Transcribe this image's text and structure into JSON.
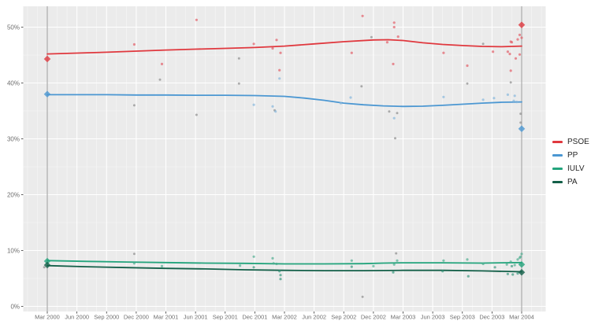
{
  "chart_data": {
    "type": "scatter",
    "title": "",
    "x_axis": {
      "tick_labels": [
        "Mar 2000",
        "Jun 2000",
        "Sep 2000",
        "Dec 2000",
        "Mar 2001",
        "Jun 2001",
        "Sep 2001",
        "Dec 2001",
        "Mar 2002",
        "Jun 2002",
        "Sep 2002",
        "Dec 2002",
        "Mar 2003",
        "Jun 2003",
        "Sep 2003",
        "Dec 2003",
        "Mar 2004"
      ],
      "major_tick_every_months": 3,
      "minor_tick_every_months": 1,
      "range_months": [
        -2.4,
        50.4
      ]
    },
    "y_axis": {
      "tick_labels": [
        "0%",
        "10%",
        "20%",
        "30%",
        "40%",
        "50%"
      ],
      "tick_values": [
        0,
        10,
        20,
        30,
        40,
        50
      ],
      "minor_tick_values": [
        5,
        15,
        25,
        35,
        45
      ],
      "range_percent": [
        -0.9,
        53.7
      ]
    },
    "grid": "on",
    "legend_position": "right",
    "election_dates": [
      {
        "label": "Mar 2000",
        "month": 0
      },
      {
        "label": "Mar 2004",
        "month": 48
      }
    ],
    "style": {
      "panel_bg": "#ebebeb",
      "grid_color": "#ffffff",
      "election_line_color": "#8f8f8f",
      "tick_label_color": "#6f6f6f",
      "tick_mark_color": "#333333"
    },
    "unaffiliated": {
      "color": "#8d8d8d",
      "points": [
        [
          -0.3,
          7.0
        ],
        [
          8.8,
          36.0
        ],
        [
          8.8,
          9.4
        ],
        [
          11.4,
          40.6
        ],
        [
          15.1,
          34.3
        ],
        [
          19.4,
          44.4
        ],
        [
          19.4,
          39.9
        ],
        [
          23.0,
          35.1
        ],
        [
          31.8,
          39.4
        ],
        [
          31.9,
          1.7
        ],
        [
          32.8,
          48.2
        ],
        [
          34.6,
          34.9
        ],
        [
          35.2,
          30.1
        ],
        [
          35.3,
          9.5
        ],
        [
          35.4,
          34.6
        ],
        [
          42.5,
          39.9
        ],
        [
          44.1,
          47.0
        ],
        [
          46.9,
          40.1
        ],
        [
          47.9,
          34.5
        ],
        [
          47.9,
          32.9
        ]
      ]
    },
    "series": [
      {
        "name": "PSOE",
        "color": "#e0383e",
        "point_color": "#e25560",
        "trend": [
          [
            0,
            45.2
          ],
          [
            3,
            45.35
          ],
          [
            6,
            45.5
          ],
          [
            9,
            45.7
          ],
          [
            12,
            45.9
          ],
          [
            15,
            46.05
          ],
          [
            18,
            46.2
          ],
          [
            21,
            46.35
          ],
          [
            24,
            46.6
          ],
          [
            27,
            47.0
          ],
          [
            30,
            47.4
          ],
          [
            33,
            47.7
          ],
          [
            34.5,
            47.75
          ],
          [
            36,
            47.6
          ],
          [
            38,
            47.2
          ],
          [
            40,
            46.9
          ],
          [
            42,
            46.7
          ],
          [
            44,
            46.55
          ],
          [
            46,
            46.5
          ],
          [
            48,
            46.6
          ]
        ],
        "polls": [
          [
            8.8,
            46.9
          ],
          [
            11.6,
            43.4
          ],
          [
            15.1,
            51.3
          ],
          [
            20.9,
            47.0
          ],
          [
            22.8,
            46.2
          ],
          [
            23.2,
            47.7
          ],
          [
            23.6,
            45.4
          ],
          [
            23.5,
            42.3
          ],
          [
            30.8,
            45.4
          ],
          [
            31.9,
            52.0
          ],
          [
            34.4,
            47.3
          ],
          [
            35.1,
            50.8
          ],
          [
            35.1,
            50.0
          ],
          [
            35.5,
            48.3
          ],
          [
            35.0,
            43.4
          ],
          [
            40.1,
            45.4
          ],
          [
            42.5,
            43.1
          ],
          [
            45.1,
            45.6
          ],
          [
            46.6,
            45.6
          ],
          [
            46.8,
            45.2
          ],
          [
            46.9,
            47.4
          ],
          [
            47.0,
            47.3
          ],
          [
            47.4,
            44.4
          ],
          [
            47.6,
            47.8
          ],
          [
            47.8,
            48.6
          ],
          [
            48.0,
            48.1
          ],
          [
            46.9,
            42.2
          ],
          [
            47.8,
            45.1
          ]
        ],
        "election_results": [
          [
            0,
            44.3
          ],
          [
            48,
            50.4
          ]
        ]
      },
      {
        "name": "PP",
        "color": "#4b97d2",
        "point_color": "#7fb3dc",
        "trend": [
          [
            0,
            37.9
          ],
          [
            3,
            37.9
          ],
          [
            6,
            37.9
          ],
          [
            9,
            37.85
          ],
          [
            12,
            37.85
          ],
          [
            15,
            37.8
          ],
          [
            18,
            37.8
          ],
          [
            21,
            37.75
          ],
          [
            24,
            37.6
          ],
          [
            26,
            37.3
          ],
          [
            28,
            36.9
          ],
          [
            30,
            36.4
          ],
          [
            32,
            36.1
          ],
          [
            34,
            35.9
          ],
          [
            36,
            35.8
          ],
          [
            38,
            35.85
          ],
          [
            40,
            36.0
          ],
          [
            42,
            36.2
          ],
          [
            44,
            36.4
          ],
          [
            46,
            36.55
          ],
          [
            48,
            36.6
          ]
        ],
        "polls": [
          [
            20.9,
            36.1
          ],
          [
            22.8,
            35.8
          ],
          [
            23.1,
            34.9
          ],
          [
            23.5,
            40.8
          ],
          [
            29.7,
            36.4
          ],
          [
            30.7,
            37.4
          ],
          [
            35.1,
            33.7
          ],
          [
            40.1,
            37.5
          ],
          [
            44.1,
            37.0
          ],
          [
            45.2,
            37.3
          ],
          [
            46.6,
            37.9
          ],
          [
            47.3,
            37.7
          ],
          [
            47.2,
            36.8
          ],
          [
            47.5,
            36.6
          ]
        ],
        "election_results": [
          [
            0,
            38.0
          ],
          [
            48,
            31.8
          ]
        ]
      },
      {
        "name": "IULV",
        "color": "#23a47c",
        "point_color": "#46ab8c",
        "trend": [
          [
            0,
            8.2
          ],
          [
            4,
            8.05
          ],
          [
            8,
            7.95
          ],
          [
            12,
            7.85
          ],
          [
            16,
            7.75
          ],
          [
            20,
            7.7
          ],
          [
            24,
            7.6
          ],
          [
            28,
            7.6
          ],
          [
            32,
            7.65
          ],
          [
            34,
            7.75
          ],
          [
            36,
            7.8
          ],
          [
            40,
            7.8
          ],
          [
            44,
            7.75
          ],
          [
            46,
            7.8
          ],
          [
            48,
            7.85
          ]
        ],
        "polls": [
          [
            8.8,
            7.7
          ],
          [
            11.6,
            7.2
          ],
          [
            19.5,
            7.3
          ],
          [
            20.9,
            8.9
          ],
          [
            22.8,
            8.6
          ],
          [
            22.9,
            7.7
          ],
          [
            23.2,
            7.6
          ],
          [
            30.8,
            8.2
          ],
          [
            33.0,
            7.2
          ],
          [
            35.1,
            7.5
          ],
          [
            35.4,
            8.2
          ],
          [
            40.1,
            8.2
          ],
          [
            42.5,
            8.4
          ],
          [
            44.1,
            7.6
          ],
          [
            46.5,
            7.5
          ],
          [
            46.9,
            8.0
          ],
          [
            47.3,
            7.4
          ],
          [
            47.6,
            8.4
          ],
          [
            47.8,
            8.7
          ],
          [
            47.9,
            8.9
          ],
          [
            48.0,
            9.4
          ]
        ],
        "election_results": [
          [
            0,
            8.1
          ],
          [
            48,
            7.5
          ]
        ]
      },
      {
        "name": "PA",
        "color": "#135f48",
        "point_color": "#2f9478",
        "trend": [
          [
            0,
            7.3
          ],
          [
            4,
            7.1
          ],
          [
            8,
            6.95
          ],
          [
            12,
            6.8
          ],
          [
            16,
            6.7
          ],
          [
            20,
            6.55
          ],
          [
            24,
            6.45
          ],
          [
            28,
            6.4
          ],
          [
            32,
            6.4
          ],
          [
            36,
            6.45
          ],
          [
            40,
            6.45
          ],
          [
            44,
            6.35
          ],
          [
            48,
            6.2
          ]
        ],
        "polls": [
          [
            20.9,
            7.0
          ],
          [
            23.5,
            6.3
          ],
          [
            23.6,
            5.6
          ],
          [
            23.6,
            4.9
          ],
          [
            30.8,
            7.1
          ],
          [
            35.0,
            6.1
          ],
          [
            40.0,
            6.3
          ],
          [
            42.6,
            5.4
          ],
          [
            45.3,
            7.0
          ],
          [
            46.6,
            5.8
          ],
          [
            47.0,
            7.2
          ],
          [
            47.1,
            5.7
          ],
          [
            47.6,
            5.9
          ]
        ],
        "election_results": [
          [
            0,
            7.4
          ],
          [
            48,
            6.1
          ]
        ]
      }
    ]
  }
}
